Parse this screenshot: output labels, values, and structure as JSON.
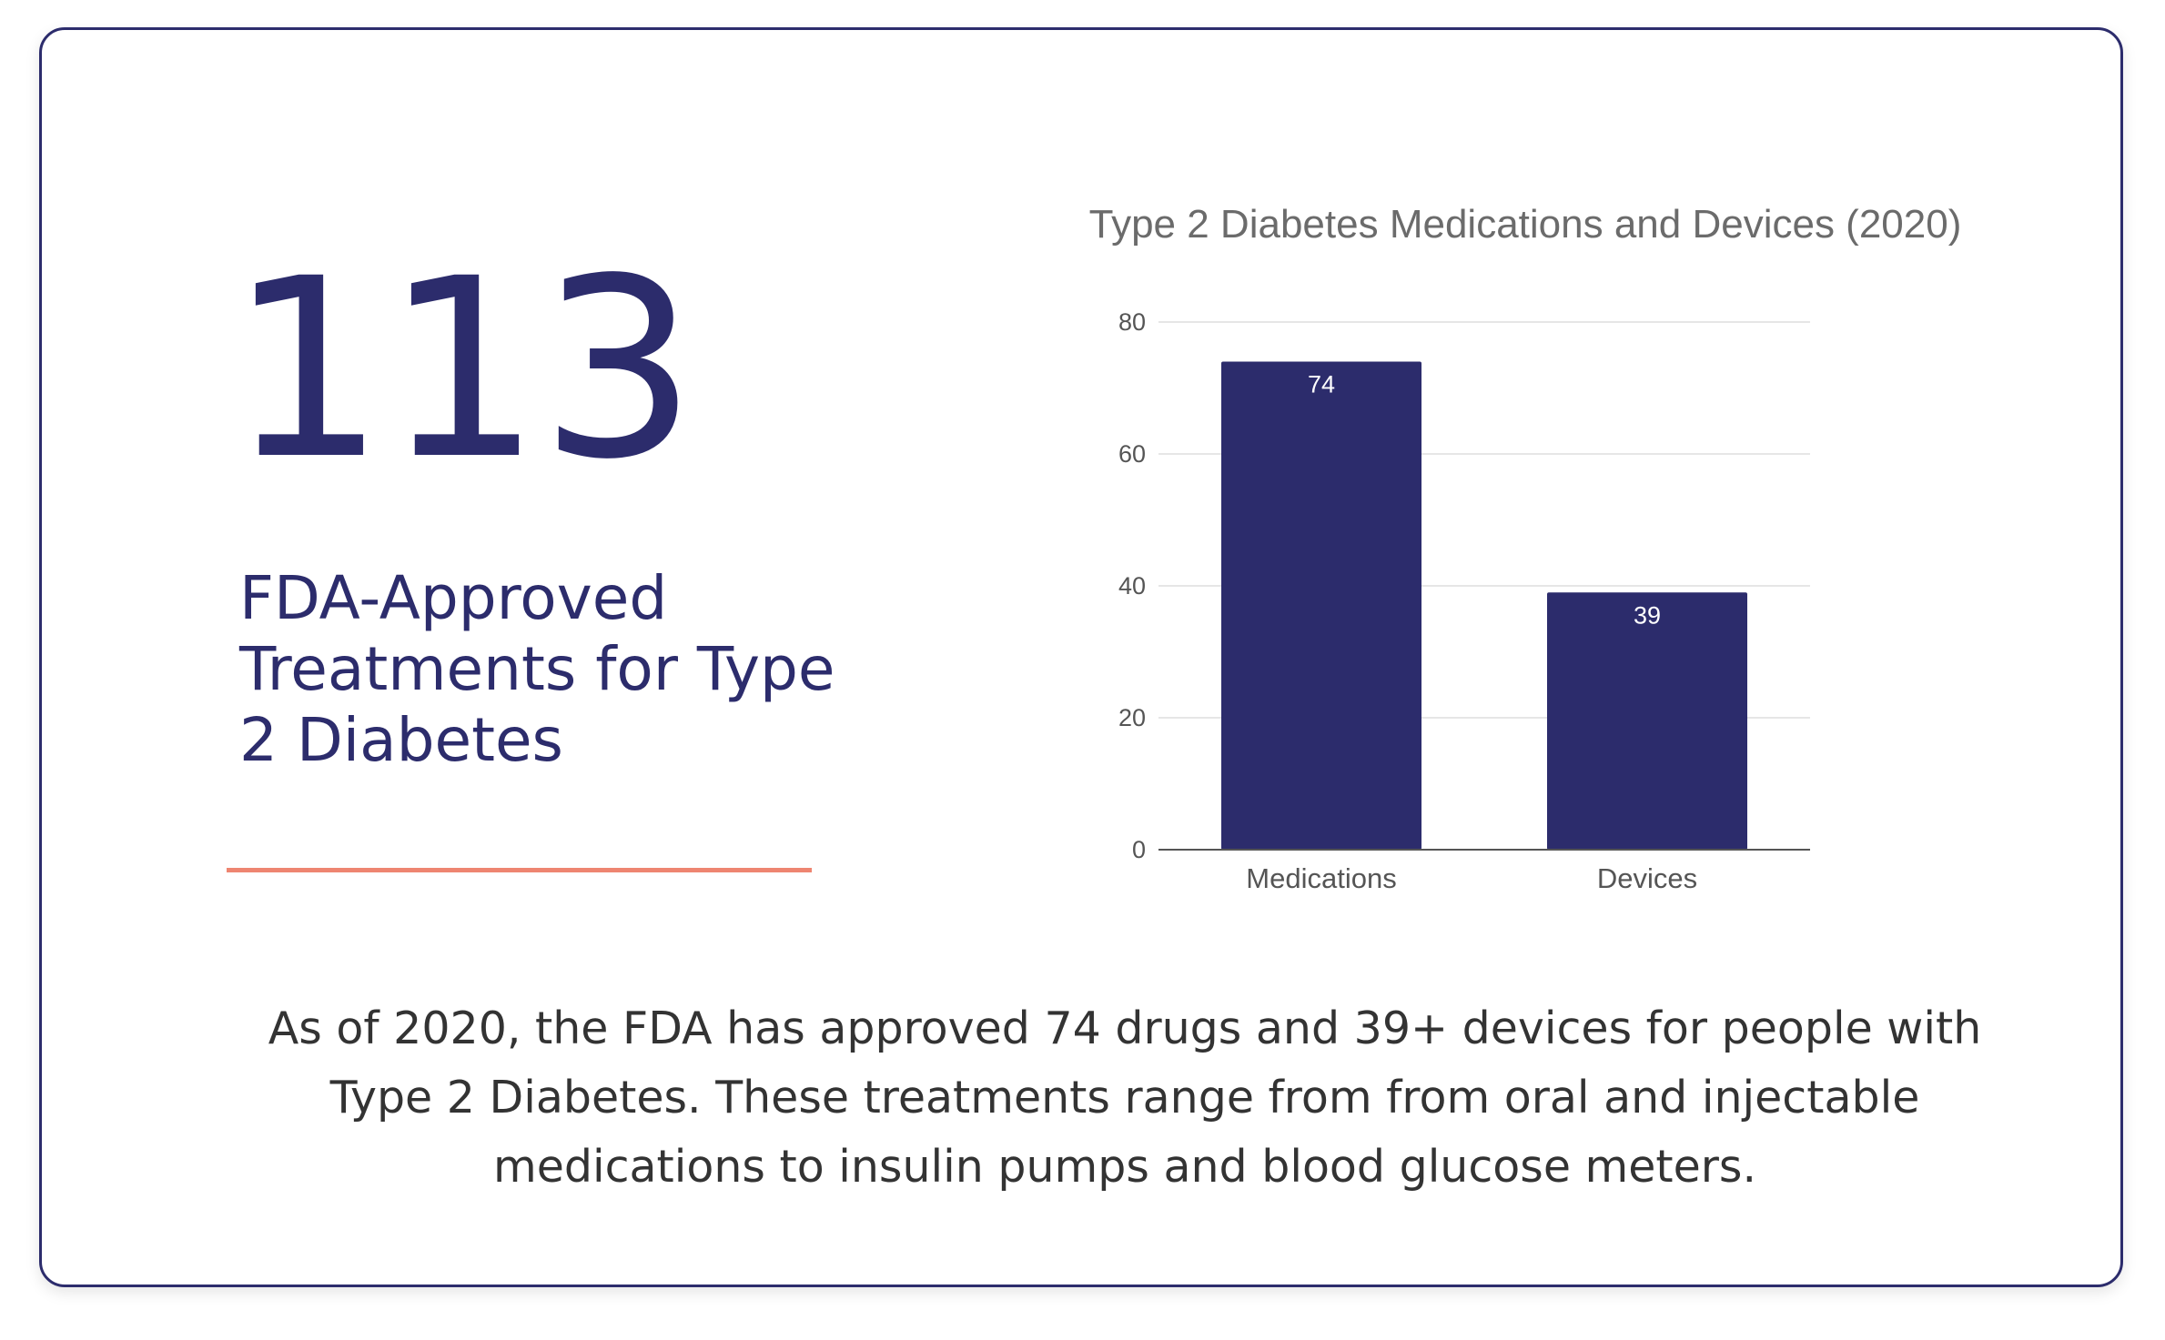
{
  "stat": {
    "number": "113",
    "caption": "FDA-Approved Treatments for Type 2 Diabetes"
  },
  "description": "As of 2020, the FDA has approved 74 drugs and 39+ devices for people with Type 2 Diabetes. These treatments range from from oral and injectable medications to insulin pumps and blood glucose meters.",
  "colors": {
    "primary": "#2c2c6c",
    "accent": "#ee8571",
    "bar": "#2c2c6c",
    "text": "#333333"
  },
  "chart_data": {
    "type": "bar",
    "title": "Type 2 Diabetes Medications and Devices (2020)",
    "categories": [
      "Medications",
      "Devices"
    ],
    "values": [
      74,
      39
    ],
    "data_labels": [
      "74",
      "39"
    ],
    "xlabel": "",
    "ylabel": "",
    "ylim": [
      0,
      80
    ],
    "yticks": [
      0,
      20,
      40,
      60,
      80
    ],
    "grid": true,
    "legend": "none"
  }
}
